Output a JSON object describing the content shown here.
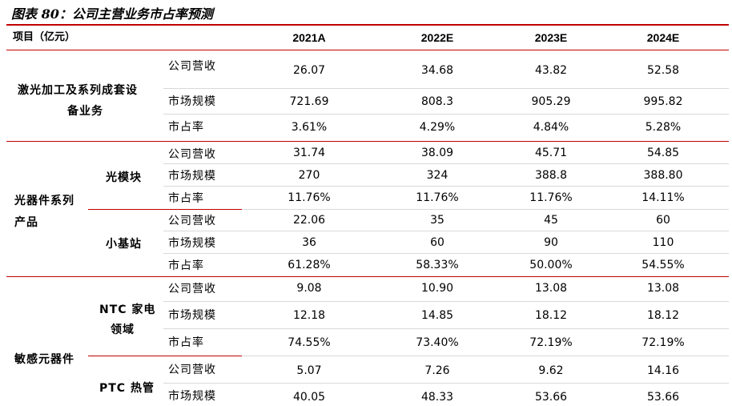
{
  "caption": "图表 80：公司主营业务市占率预测",
  "header": {
    "item": "项目（亿元）",
    "years": [
      "2021A",
      "2022E",
      "2023E",
      "2024E"
    ]
  },
  "sections": [
    {
      "category": "激光加工及系列成套设备业务",
      "category_lines": [
        "激光加工及系列成套设",
        "备业务"
      ],
      "rows": [
        {
          "metric": "公司营收",
          "values": [
            "26.07",
            "34.68",
            "43.82",
            "52.58"
          ]
        },
        {
          "metric": "市场规模",
          "values": [
            "721.69",
            "808.3",
            "905.29",
            "995.82"
          ]
        },
        {
          "metric": "市占率",
          "values": [
            "3.61%",
            "4.29%",
            "4.84%",
            "5.28%"
          ]
        }
      ]
    },
    {
      "category": "光器件系列产品",
      "category_lines": [
        "光器件系列",
        "产品"
      ],
      "subgroups": [
        {
          "name": "光模块",
          "rows": [
            {
              "metric": "公司营收",
              "values": [
                "31.74",
                "38.09",
                "45.71",
                "54.85"
              ]
            },
            {
              "metric": "市场规模",
              "values": [
                "270",
                "324",
                "388.8",
                "388.80"
              ]
            },
            {
              "metric": "市占率",
              "values": [
                "11.76%",
                "11.76%",
                "11.76%",
                "14.11%"
              ]
            }
          ]
        },
        {
          "name": "小基站",
          "rows": [
            {
              "metric": "公司营收",
              "values": [
                "22.06",
                "35",
                "45",
                "60"
              ]
            },
            {
              "metric": "市场规模",
              "values": [
                "36",
                "60",
                "90",
                "110"
              ]
            },
            {
              "metric": "市占率",
              "values": [
                "61.28%",
                "58.33%",
                "50.00%",
                "54.55%"
              ]
            }
          ]
        }
      ]
    },
    {
      "category": "敏感元器件",
      "subgroups": [
        {
          "name_lines": [
            "NTC 家电",
            "领域"
          ],
          "rows": [
            {
              "metric": "公司营收",
              "values": [
                "9.08",
                "10.90",
                "13.08",
                "13.08"
              ]
            },
            {
              "metric": "市场规模",
              "values": [
                "12.18",
                "14.85",
                "18.12",
                "18.12"
              ]
            },
            {
              "metric": "市占率",
              "values": [
                "74.55%",
                "73.40%",
                "72.19%",
                "72.19%"
              ]
            }
          ]
        },
        {
          "name_lines": [
            "PTC 热管"
          ],
          "rows": [
            {
              "metric": "公司营收",
              "values": [
                "5.07",
                "7.26",
                "9.62",
                "14.16"
              ]
            },
            {
              "metric": "市场规模",
              "values": [
                "40.05",
                "48.33",
                "53.66",
                "53.66"
              ]
            }
          ]
        }
      ]
    }
  ],
  "colors": {
    "rule": "#c00000",
    "grid": "#d9d9d9"
  }
}
